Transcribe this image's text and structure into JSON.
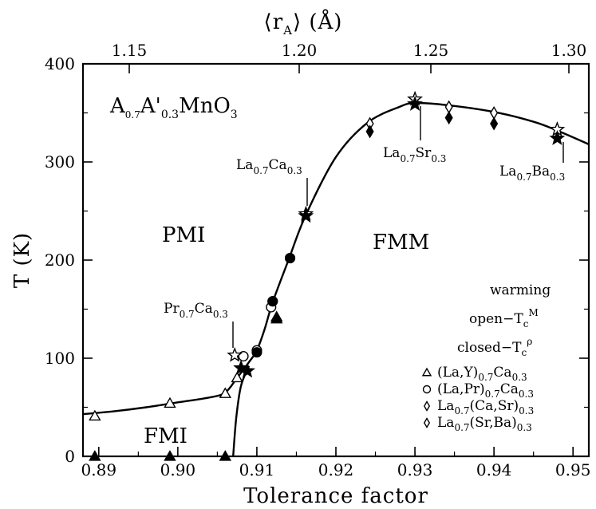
{
  "chart_data": {
    "type": "scatter",
    "xlabel": "Tolerance factor",
    "ylabel": "T (K)",
    "top_axis_label": "⟨r_A⟩ (Å)",
    "xlim": [
      0.888,
      0.952
    ],
    "ylim": [
      0,
      400
    ],
    "x_ticks": [
      0.89,
      0.9,
      0.91,
      0.92,
      0.93,
      0.94,
      0.95
    ],
    "x_tick_labels": [
      "0.89",
      "0.90",
      "0.91",
      "0.92",
      "0.93",
      "0.94",
      "0.95"
    ],
    "y_ticks": [
      0,
      100,
      200,
      300,
      400
    ],
    "y_tick_labels": [
      "0",
      "100",
      "200",
      "300",
      "400"
    ],
    "top_ticks": [
      {
        "t": 0.8937,
        "label": "1.15"
      },
      {
        "t": 0.9022,
        "label": "1.20"
      },
      {
        "t": 0.9092,
        "label": "1.25"
      },
      {
        "t": 0.9162,
        "label": "1.30"
      }
    ],
    "formula": {
      "base": "A",
      "sub1": "0.7",
      "mid": "A'",
      "sub2": "0.3",
      "tail": "MnO",
      "sub3": "3"
    },
    "regions": {
      "pmi": "PMI",
      "fmm": "FMM",
      "fmi": "FMI"
    },
    "compound_labels": {
      "lacaca": {
        "a": "La",
        "s1": "0.7",
        "b": "Ca",
        "s2": "0.3"
      },
      "lasr": {
        "a": "La",
        "s1": "0.7",
        "b": "Sr",
        "s2": "0.3"
      },
      "laba": {
        "a": "La",
        "s1": "0.7",
        "b": "Ba",
        "s2": "0.3"
      },
      "prca": {
        "a": "Pr",
        "s1": "0.7",
        "b": "Ca",
        "s2": "0.3"
      }
    },
    "legend": {
      "warming": "warming",
      "open": "open−T",
      "open_sub": "c",
      "open_sup": "M",
      "closed": "closed−T",
      "closed_sub": "c",
      "closed_sup": "ρ",
      "entries": [
        {
          "symbol": "triangle",
          "text": "(La,Y)",
          "s1": "0.7",
          "b": "Ca",
          "s2": "0.3"
        },
        {
          "symbol": "circle",
          "text": "(La,Pr)",
          "s1": "0.7",
          "b": "Ca",
          "s2": "0.3"
        },
        {
          "symbol": "diamond",
          "text": "La",
          "s1": "0.7",
          "b": "(Ca,Sr)",
          "s2": "0.3"
        },
        {
          "symbol": "diamond",
          "text": "La",
          "s1": "0.7",
          "b": "(Sr,Ba)",
          "s2": "0.3"
        }
      ]
    },
    "series": [
      {
        "symbol": "triangle",
        "fill": "open",
        "points": [
          [
            0.8895,
            41
          ],
          [
            0.899,
            54
          ],
          [
            0.906,
            64
          ],
          [
            0.9075,
            80
          ],
          [
            0.9125,
            142
          ]
        ]
      },
      {
        "symbol": "triangle",
        "fill": "closed",
        "points": [
          [
            0.8895,
            0
          ],
          [
            0.899,
            0
          ],
          [
            0.906,
            0
          ],
          [
            0.9125,
            140
          ]
        ]
      },
      {
        "symbol": "circle",
        "fill": "open",
        "points": [
          [
            0.9083,
            102
          ],
          [
            0.91,
            108
          ],
          [
            0.9118,
            152
          ],
          [
            0.912,
            158
          ],
          [
            0.9142,
            202
          ]
        ]
      },
      {
        "symbol": "circle",
        "fill": "closed",
        "points": [
          [
            0.91,
            106
          ],
          [
            0.912,
            158
          ],
          [
            0.9142,
            202
          ]
        ]
      },
      {
        "symbol": "diamond",
        "fill": "open",
        "points": [
          [
            0.9243,
            339
          ],
          [
            0.9343,
            356
          ],
          [
            0.94,
            350
          ]
        ]
      },
      {
        "symbol": "diamond",
        "fill": "closed",
        "points": [
          [
            0.9243,
            331
          ],
          [
            0.9343,
            345
          ],
          [
            0.94,
            339
          ]
        ]
      },
      {
        "symbol": "star",
        "fill": "open",
        "points": [
          [
            0.9072,
            103
          ],
          [
            0.9162,
            247
          ],
          [
            0.93,
            364
          ],
          [
            0.948,
            333
          ]
        ]
      },
      {
        "symbol": "star",
        "fill": "closed",
        "points": [
          [
            0.908,
            90
          ],
          [
            0.9088,
            87
          ],
          [
            0.9162,
            245
          ],
          [
            0.93,
            359
          ],
          [
            0.948,
            324
          ]
        ]
      }
    ],
    "curves": [
      {
        "name": "",
        "points": [
          [
            0.888,
            43
          ],
          [
            0.892,
            46
          ],
          [
            0.896,
            50
          ],
          [
            0.9,
            55
          ],
          [
            0.904,
            60
          ],
          [
            0.906,
            65
          ],
          [
            0.9075,
            80
          ],
          [
            0.909,
            96
          ],
          [
            0.91,
            108
          ],
          [
            0.911,
            130
          ],
          [
            0.912,
            157
          ],
          [
            0.914,
            200
          ],
          [
            0.9162,
            246
          ],
          [
            0.92,
            305
          ],
          [
            0.924,
            340
          ],
          [
            0.928,
            356
          ],
          [
            0.93,
            360
          ],
          [
            0.934,
            358
          ],
          [
            0.94,
            351
          ],
          [
            0.945,
            341
          ],
          [
            0.948,
            332
          ],
          [
            0.952,
            318
          ]
        ]
      },
      {
        "name": "",
        "points": [
          [
            0.907,
            0
          ],
          [
            0.9074,
            40
          ],
          [
            0.908,
            72
          ],
          [
            0.909,
            92
          ]
        ]
      }
    ]
  }
}
